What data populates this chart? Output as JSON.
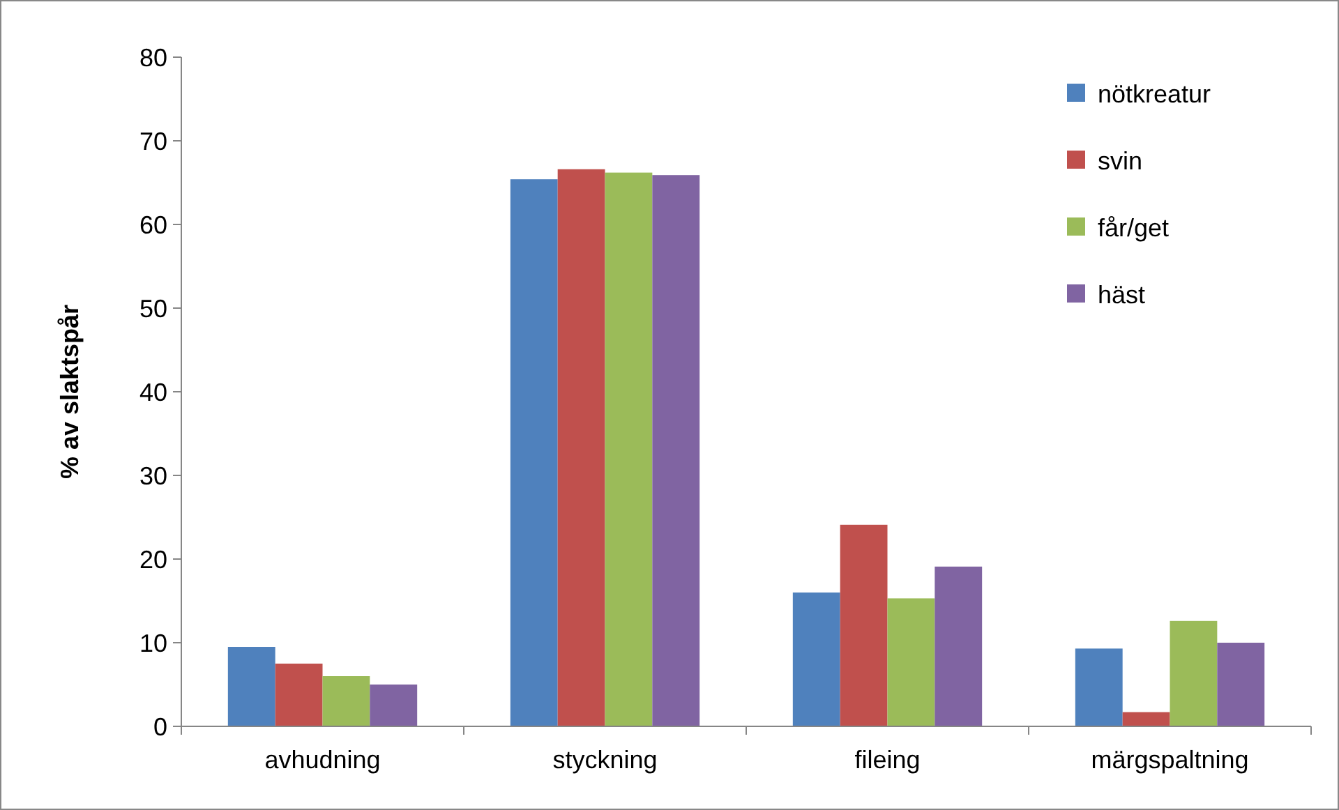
{
  "chart_data": {
    "type": "bar",
    "ylabel": "% av slaktspår",
    "categories": [
      "avhudning",
      "styckning",
      "fileing",
      "märgspaltning"
    ],
    "series": [
      {
        "name": "nötkreatur",
        "color": "#4f81bd",
        "values": [
          9.5,
          65.4,
          16,
          9.3
        ]
      },
      {
        "name": "svin",
        "color": "#c0504d",
        "values": [
          7.5,
          66.6,
          24.1,
          1.7
        ]
      },
      {
        "name": "får/get",
        "color": "#9bbb59",
        "values": [
          6,
          66.2,
          15.3,
          12.6
        ]
      },
      {
        "name": "häst",
        "color": "#8064a2",
        "values": [
          5,
          65.9,
          19.1,
          10
        ]
      }
    ],
    "ylim": [
      0,
      80
    ],
    "yticks": [
      0,
      10,
      20,
      30,
      40,
      50,
      60,
      70,
      80
    ],
    "grid": false,
    "legend": "top right"
  }
}
